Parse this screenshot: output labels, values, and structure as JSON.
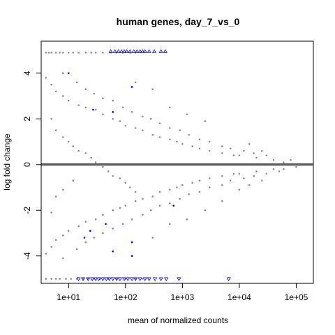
{
  "chart_data": {
    "type": "scatter",
    "title": "human genes, day_7_vs_0",
    "xlabel": "mean of normalized counts",
    "ylabel": "log fold change",
    "x_scale": "log10",
    "xlim": [
      3.3,
      200000
    ],
    "ylim": [
      -5.2,
      5.4
    ],
    "x_ticks": [
      {
        "value": 10,
        "label": "1e+01"
      },
      {
        "value": 100,
        "label": "1e+02"
      },
      {
        "value": 1000,
        "label": "1e+03"
      },
      {
        "value": 10000,
        "label": "1e+04"
      },
      {
        "value": 100000,
        "label": "1e+05"
      }
    ],
    "y_ticks": [
      {
        "value": -4,
        "label": "-4"
      },
      {
        "value": -2,
        "label": "-2"
      },
      {
        "value": 0,
        "label": "0"
      },
      {
        "value": 2,
        "label": "2"
      },
      {
        "value": 4,
        "label": "4"
      }
    ],
    "reference_line": {
      "y": 0,
      "color": "#666666"
    },
    "grid": false,
    "colors": {
      "points": "#8c8c8c",
      "significant": "#0000ff",
      "axes": "#000000"
    },
    "series": [
      {
        "marker": "circle",
        "color": "#8c8c8c",
        "points": [
          [
            4,
            4.9
          ],
          [
            4.5,
            4.9
          ],
          [
            5,
            4.9
          ],
          [
            6,
            4.9
          ],
          [
            7,
            4.9
          ],
          [
            8,
            4.9
          ],
          [
            10,
            4.9
          ],
          [
            12,
            4.9
          ],
          [
            15,
            4.9
          ],
          [
            20,
            4.9
          ],
          [
            25,
            4.9
          ],
          [
            30,
            4.9
          ],
          [
            40,
            4.9
          ],
          [
            55,
            4.9
          ],
          [
            70,
            4.9
          ],
          [
            90,
            4.9
          ],
          [
            120,
            4.9
          ],
          [
            150,
            4.9
          ],
          [
            4,
            -5
          ],
          [
            5,
            -5
          ],
          [
            6,
            -5
          ],
          [
            7,
            -5
          ],
          [
            9,
            -5
          ],
          [
            11,
            -5
          ],
          [
            14,
            -5
          ],
          [
            18,
            -5
          ],
          [
            22,
            -5
          ],
          [
            28,
            -5
          ],
          [
            36,
            -5
          ],
          [
            50,
            -5
          ],
          [
            70,
            -5
          ],
          [
            100,
            -5
          ],
          [
            150,
            -5
          ],
          [
            200,
            -5
          ],
          [
            4,
            3.8
          ],
          [
            5,
            3.5
          ],
          [
            6,
            3.2
          ],
          [
            8,
            3.0
          ],
          [
            10,
            2.8
          ],
          [
            15,
            2.6
          ],
          [
            20,
            2.5
          ],
          [
            30,
            2.4
          ],
          [
            40,
            2.2
          ],
          [
            60,
            2.0
          ],
          [
            80,
            1.9
          ],
          [
            100,
            1.7
          ],
          [
            150,
            1.6
          ],
          [
            200,
            1.5
          ],
          [
            300,
            1.3
          ],
          [
            400,
            1.2
          ],
          [
            600,
            1.1
          ],
          [
            800,
            1.0
          ],
          [
            1000,
            0.9
          ],
          [
            1500,
            0.8
          ],
          [
            2000,
            0.7
          ],
          [
            3000,
            0.6
          ],
          [
            5000,
            0.5
          ],
          [
            8000,
            0.4
          ],
          [
            10000,
            0.4
          ],
          [
            20000,
            0.3
          ],
          [
            40000,
            0.2
          ],
          [
            4,
            -3.9
          ],
          [
            5,
            -3.6
          ],
          [
            6,
            -3.3
          ],
          [
            8,
            -3.1
          ],
          [
            10,
            -2.9
          ],
          [
            15,
            -2.7
          ],
          [
            20,
            -2.5
          ],
          [
            30,
            -2.4
          ],
          [
            40,
            -2.2
          ],
          [
            60,
            -2.0
          ],
          [
            80,
            -1.9
          ],
          [
            100,
            -1.8
          ],
          [
            150,
            -1.6
          ],
          [
            200,
            -1.5
          ],
          [
            300,
            -1.4
          ],
          [
            400,
            -1.2
          ],
          [
            600,
            -1.1
          ],
          [
            800,
            -1.0
          ],
          [
            1000,
            -0.9
          ],
          [
            1500,
            -0.8
          ],
          [
            2000,
            -0.7
          ],
          [
            3000,
            -0.6
          ],
          [
            5000,
            -0.5
          ],
          [
            8000,
            -0.4
          ],
          [
            10000,
            -0.4
          ],
          [
            20000,
            -0.3
          ],
          [
            40000,
            -0.2
          ],
          [
            5,
            2.0
          ],
          [
            6,
            1.5
          ],
          [
            8,
            1.2
          ],
          [
            10,
            1.0
          ],
          [
            12,
            0.8
          ],
          [
            15,
            0.6
          ],
          [
            20,
            0.5
          ],
          [
            25,
            0.3
          ],
          [
            30,
            0.1
          ],
          [
            40,
            -0.1
          ],
          [
            50,
            -0.3
          ],
          [
            60,
            -0.5
          ],
          [
            80,
            -0.6
          ],
          [
            100,
            -0.8
          ],
          [
            120,
            -1.0
          ],
          [
            150,
            -1.2
          ],
          [
            5,
            -2.1
          ],
          [
            6,
            -1.4
          ],
          [
            8,
            -1.1
          ],
          [
            12,
            -0.7
          ],
          [
            8,
            4.0
          ],
          [
            14,
            3.6
          ],
          [
            20,
            3.3
          ],
          [
            28,
            3.1
          ],
          [
            40,
            2.9
          ],
          [
            60,
            2.8
          ],
          [
            90,
            2.5
          ],
          [
            130,
            2.3
          ],
          [
            200,
            2.1
          ],
          [
            280,
            2.0
          ],
          [
            400,
            1.8
          ],
          [
            600,
            1.6
          ],
          [
            900,
            1.5
          ],
          [
            1300,
            1.3
          ],
          [
            2000,
            1.1
          ],
          [
            3000,
            1.0
          ],
          [
            5000,
            0.8
          ],
          [
            7000,
            0.7
          ],
          [
            12000,
            0.6
          ],
          [
            18000,
            0.5
          ],
          [
            30000,
            0.4
          ],
          [
            60000,
            0.1
          ],
          [
            8,
            -4.1
          ],
          [
            14,
            -3.7
          ],
          [
            20,
            -3.4
          ],
          [
            28,
            -3.2
          ],
          [
            40,
            -3.0
          ],
          [
            60,
            -2.8
          ],
          [
            90,
            -2.6
          ],
          [
            130,
            -2.4
          ],
          [
            200,
            -2.2
          ],
          [
            280,
            -2.0
          ],
          [
            400,
            -1.8
          ],
          [
            600,
            -1.7
          ],
          [
            900,
            -1.5
          ],
          [
            1300,
            -1.3
          ],
          [
            2000,
            -1.2
          ],
          [
            3000,
            -1.0
          ],
          [
            5000,
            -0.9
          ],
          [
            7000,
            -0.7
          ],
          [
            12000,
            -0.6
          ],
          [
            18000,
            -0.5
          ],
          [
            30000,
            -0.4
          ],
          [
            60000,
            -0.2
          ],
          [
            130000,
            0.0
          ],
          [
            100000,
            -0.1
          ],
          [
            80000,
            0.2
          ],
          [
            50000,
            -0.3
          ],
          [
            300,
            3.3
          ],
          [
            150,
            3.6
          ],
          [
            600,
            2.5
          ],
          [
            1200,
            2.2
          ],
          [
            2500,
            1.9
          ],
          [
            300,
            -3.2
          ],
          [
            600,
            -2.6
          ],
          [
            1200,
            -2.4
          ],
          [
            2500,
            -2.0
          ],
          [
            5000,
            -1.6
          ],
          [
            10000,
            -1.1
          ],
          [
            15000,
            -0.9
          ],
          [
            15000,
            0.9
          ],
          [
            25000,
            0.6
          ],
          [
            25000,
            -0.7
          ]
        ]
      },
      {
        "marker": "triangle-up",
        "color": "#0000ff",
        "points": [
          [
            55,
            4.95
          ],
          [
            65,
            4.95
          ],
          [
            75,
            4.95
          ],
          [
            85,
            4.95
          ],
          [
            95,
            4.95
          ],
          [
            105,
            4.95
          ],
          [
            120,
            4.95
          ],
          [
            140,
            4.95
          ],
          [
            160,
            4.95
          ],
          [
            180,
            4.95
          ],
          [
            200,
            4.95
          ],
          [
            220,
            4.95
          ],
          [
            260,
            4.95
          ],
          [
            320,
            4.95
          ],
          [
            420,
            4.95
          ],
          [
            500,
            4.95
          ]
        ]
      },
      {
        "marker": "triangle-down",
        "color": "#0000ff",
        "points": [
          [
            15,
            -5
          ],
          [
            18,
            -5
          ],
          [
            22,
            -5
          ],
          [
            26,
            -5
          ],
          [
            30,
            -5
          ],
          [
            34,
            -5
          ],
          [
            40,
            -5
          ],
          [
            46,
            -5
          ],
          [
            52,
            -5
          ],
          [
            60,
            -5
          ],
          [
            70,
            -5
          ],
          [
            80,
            -5
          ],
          [
            95,
            -5
          ],
          [
            110,
            -5
          ],
          [
            130,
            -5
          ],
          [
            150,
            -5
          ],
          [
            180,
            -5
          ],
          [
            220,
            -5
          ],
          [
            260,
            -5
          ],
          [
            330,
            -5
          ],
          [
            420,
            -5
          ],
          [
            520,
            -5
          ],
          [
            870,
            -5
          ],
          [
            6500,
            -5
          ]
        ]
      },
      {
        "marker": "circle",
        "color": "#0000ff",
        "points": [
          [
            130,
            3.4
          ],
          [
            60,
            2.3
          ],
          [
            27,
            2.4
          ],
          [
            10,
            4.0
          ],
          [
            700,
            -1.8
          ],
          [
            24,
            -2.9
          ],
          [
            45,
            -2.6
          ],
          [
            130,
            -3.4
          ],
          [
            19,
            -3.2
          ],
          [
            60,
            -3.8
          ],
          [
            130,
            -4.0
          ]
        ]
      }
    ]
  }
}
